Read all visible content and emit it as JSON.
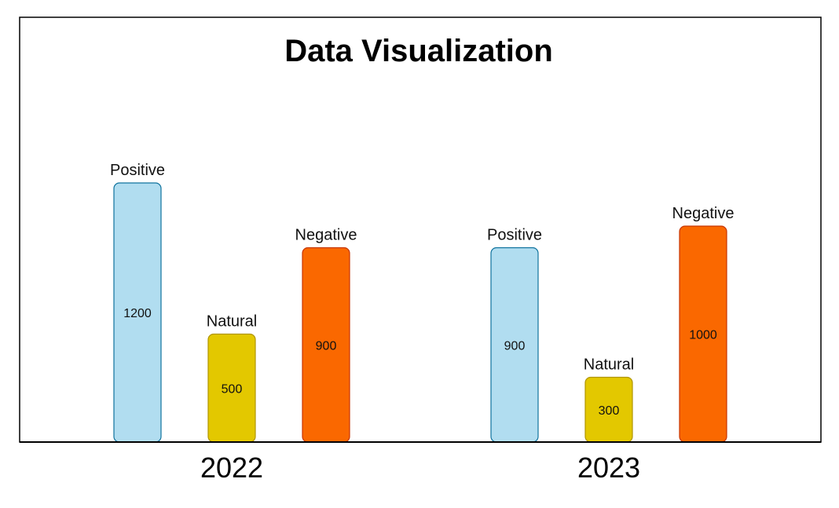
{
  "chart_data": {
    "type": "bar",
    "title": "Data Visualization",
    "categories": [
      "2022",
      "2023"
    ],
    "series": [
      {
        "name": "Positive",
        "values": [
          1200,
          900
        ],
        "color": "#b1ddf0",
        "stroke": "#10739e"
      },
      {
        "name": "Natural",
        "values": [
          500,
          300
        ],
        "color": "#e3c800",
        "stroke": "#b09500"
      },
      {
        "name": "Negative",
        "values": [
          900,
          1000
        ],
        "color": "#fa6800",
        "stroke": "#c73500"
      }
    ],
    "ylim": [
      0,
      1200
    ],
    "grid": false,
    "legend": "none"
  }
}
